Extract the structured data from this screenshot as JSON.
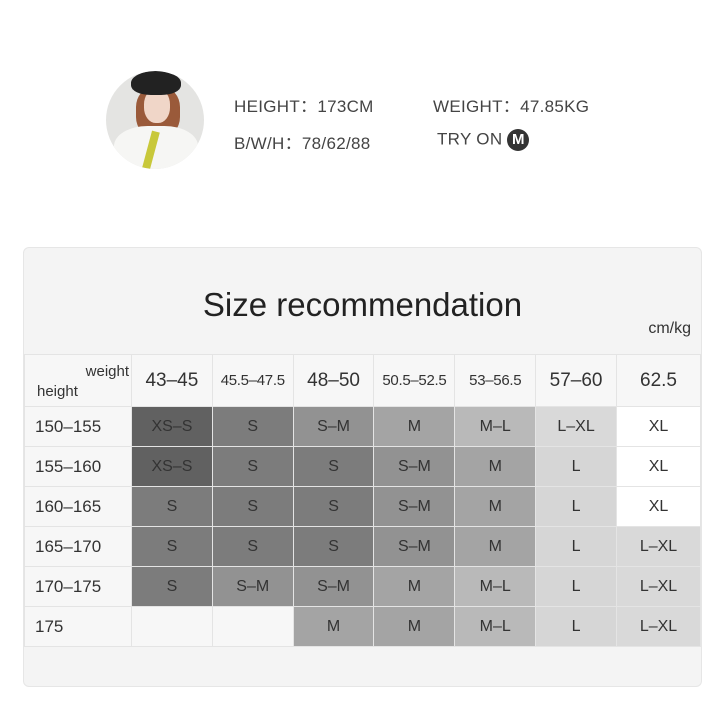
{
  "model": {
    "height_label": "HEIGHT：",
    "height": "173CM",
    "weight_label": "WEIGHT：",
    "weight": "47.85KG",
    "bwh_label": "B/W/H：",
    "bwh": "78/62/88",
    "try_on_label": "TRY ON",
    "try_on_size": "M"
  },
  "chart": {
    "title": "Size recommendation",
    "unit": "cm/kg",
    "corner_col": "weight",
    "corner_row": "height",
    "columns": [
      "43–45",
      "45.5–47.5",
      "48–50",
      "50.5–52.5",
      "53–56.5",
      "57–60",
      "62.5"
    ],
    "rows": [
      {
        "height": "150–155",
        "sizes": [
          "XS–S",
          "S",
          "S–M",
          "M",
          "M–L",
          "L–XL",
          "XL"
        ]
      },
      {
        "height": "155–160",
        "sizes": [
          "XS–S",
          "S",
          "S",
          "S–M",
          "M",
          "L",
          "XL"
        ]
      },
      {
        "height": "160–165",
        "sizes": [
          "S",
          "S",
          "S",
          "S–M",
          "M",
          "L",
          "XL"
        ]
      },
      {
        "height": "165–170",
        "sizes": [
          "S",
          "S",
          "S",
          "S–M",
          "M",
          "L",
          "L–XL"
        ]
      },
      {
        "height": "170–175",
        "sizes": [
          "S",
          "S–M",
          "S–M",
          "M",
          "M–L",
          "L",
          "L–XL"
        ]
      },
      {
        "height": "175",
        "sizes": [
          "",
          "",
          "M",
          "M",
          "M–L",
          "L",
          "L–XL"
        ]
      }
    ],
    "size_colors": {
      "XS–S": "#616161",
      "S": "#7c7c7c",
      "S–M": "#929292",
      "M": "#a4a4a4",
      "M–L": "#b9b9b9",
      "L": "#d6d6d6",
      "L–XL": "#d9d9d9",
      "XL": "#ffffff",
      "": "#f7f7f7"
    }
  }
}
